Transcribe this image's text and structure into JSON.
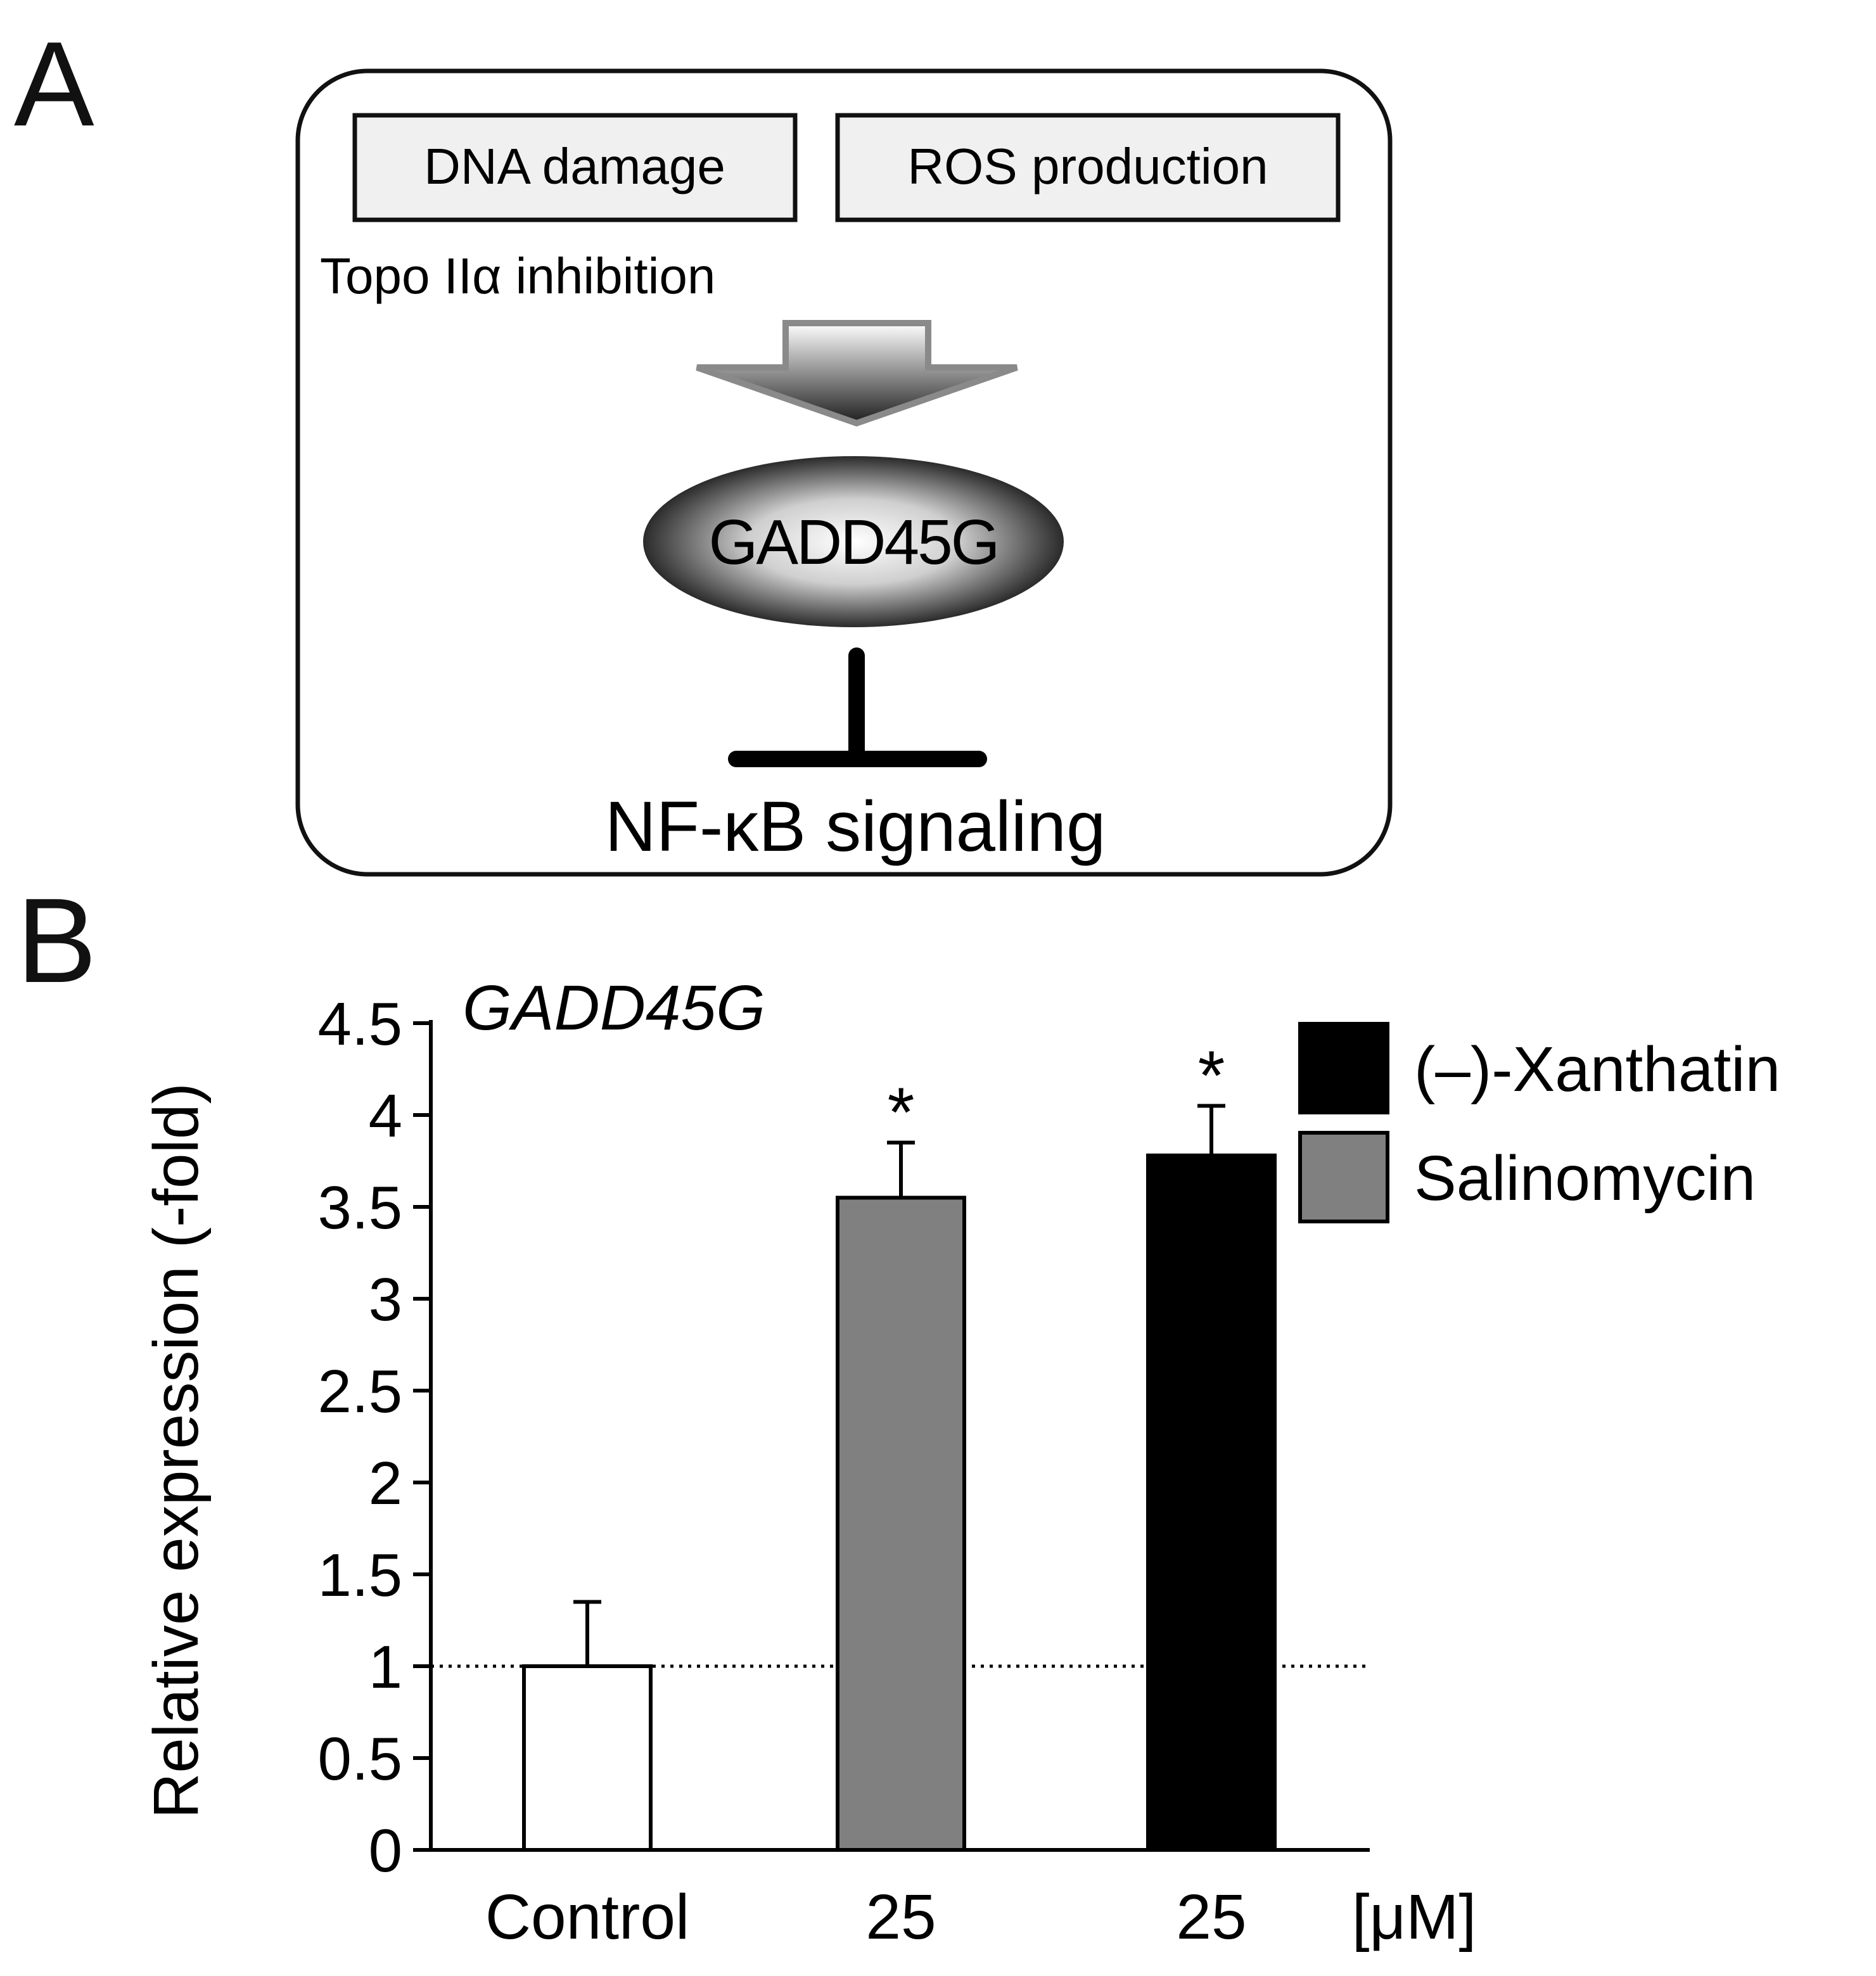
{
  "panels": {
    "a": "A",
    "b": "B"
  },
  "diagram": {
    "box1": "DNA damage",
    "box2": "ROS production",
    "topo_text": "Topo IIα inhibition",
    "oval": "GADD45G",
    "bottom": "NF-κB signaling"
  },
  "chart_data": {
    "type": "bar",
    "title": "GADD45G",
    "ylabel": "Relative expression (-fold)",
    "xlabel": "",
    "categories": [
      "Control",
      "25",
      "25"
    ],
    "x_unit": "[μM]",
    "values": [
      1.0,
      3.55,
      3.78
    ],
    "errors": [
      0.35,
      0.3,
      0.27
    ],
    "colors": [
      "#ffffff",
      "#808080",
      "#000000"
    ],
    "significance": [
      "",
      "*",
      "*"
    ],
    "ylim": [
      0,
      4.5
    ],
    "yticks": [
      "0",
      "0.5",
      "1",
      "1.5",
      "2",
      "2.5",
      "3",
      "3.5",
      "4",
      "4.5"
    ],
    "reference_line": 1,
    "legend": [
      {
        "label": "(–)-Xanthatin",
        "color": "#000000"
      },
      {
        "label": "Salinomycin",
        "color": "#808080"
      }
    ],
    "legend_position": "top-right",
    "grid": false
  }
}
